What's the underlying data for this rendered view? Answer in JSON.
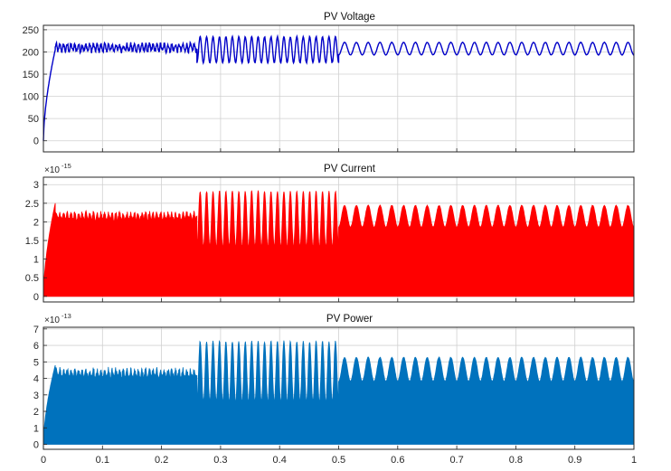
{
  "chart_data": [
    {
      "type": "line",
      "title": "PV Voltage",
      "xlabel": "",
      "ylabel": "",
      "ylim": [
        -25,
        260
      ],
      "yticks": [
        0,
        50,
        100,
        150,
        200,
        250
      ],
      "ytick_labels": [
        "0",
        "50",
        "100",
        "150",
        "200",
        "250"
      ],
      "exponent": "",
      "xlim": [
        0,
        1
      ],
      "grid": true,
      "color": "#0000c8",
      "segments": [
        {
          "x_start": 0.0,
          "x_end": 0.02,
          "shape": "rise",
          "from": 0,
          "to": 205
        },
        {
          "x_start": 0.02,
          "x_end": 0.26,
          "shape": "ripple",
          "low": 197,
          "high": 222
        },
        {
          "x_start": 0.26,
          "x_end": 0.5,
          "shape": "oscillation",
          "low": 175,
          "high": 235,
          "cycles": 22
        },
        {
          "x_start": 0.5,
          "x_end": 1.0,
          "shape": "oscillation",
          "low": 193,
          "high": 222,
          "cycles": 25
        }
      ]
    },
    {
      "type": "area",
      "title": "PV Current",
      "xlabel": "",
      "ylabel": "",
      "ylim": [
        -0.15,
        3.2
      ],
      "yticks": [
        0,
        0.5,
        1,
        1.5,
        2,
        2.5,
        3
      ],
      "ytick_labels": [
        "0",
        "0.5",
        "1",
        "1.5",
        "2",
        "2.5",
        "3"
      ],
      "exponent": "-15",
      "xlim": [
        0,
        1
      ],
      "grid": true,
      "color": "#ff0000",
      "segments": [
        {
          "x_start": 0.0,
          "x_end": 0.02,
          "shape": "rise",
          "from": 0,
          "to": 2.5
        },
        {
          "x_start": 0.02,
          "x_end": 0.26,
          "shape": "ripple",
          "low": 2.0,
          "high": 2.3
        },
        {
          "x_start": 0.26,
          "x_end": 0.5,
          "shape": "oscillation",
          "low": 1.3,
          "high": 2.85,
          "cycles": 22
        },
        {
          "x_start": 0.5,
          "x_end": 1.0,
          "shape": "oscillation",
          "low": 1.85,
          "high": 2.45,
          "cycles": 25
        }
      ]
    },
    {
      "type": "area",
      "title": "PV Power",
      "xlabel": "",
      "ylabel": "",
      "ylim": [
        -0.3,
        7.1
      ],
      "yticks": [
        0,
        1,
        2,
        3,
        4,
        5,
        6,
        7
      ],
      "ytick_labels": [
        "0",
        "1",
        "2",
        "3",
        "4",
        "5",
        "6",
        "7"
      ],
      "exponent": "-13",
      "xlim": [
        0,
        1
      ],
      "grid": true,
      "color": "#0072bd",
      "segments": [
        {
          "x_start": 0.0,
          "x_end": 0.02,
          "shape": "rise",
          "from": 0,
          "to": 4.8
        },
        {
          "x_start": 0.02,
          "x_end": 0.26,
          "shape": "ripple",
          "low": 3.9,
          "high": 4.7
        },
        {
          "x_start": 0.26,
          "x_end": 0.5,
          "shape": "oscillation",
          "low": 2.5,
          "high": 6.3,
          "cycles": 22
        },
        {
          "x_start": 0.5,
          "x_end": 1.0,
          "shape": "oscillation",
          "low": 3.8,
          "high": 5.3,
          "cycles": 25
        }
      ]
    }
  ],
  "shared_x": {
    "ticks": [
      0,
      0.1,
      0.2,
      0.3,
      0.4,
      0.5,
      0.6,
      0.7,
      0.8,
      0.9,
      1
    ],
    "tick_labels": [
      "0",
      "0.1",
      "0.2",
      "0.3",
      "0.4",
      "0.5",
      "0.6",
      "0.7",
      "0.8",
      "0.9",
      "1"
    ]
  }
}
